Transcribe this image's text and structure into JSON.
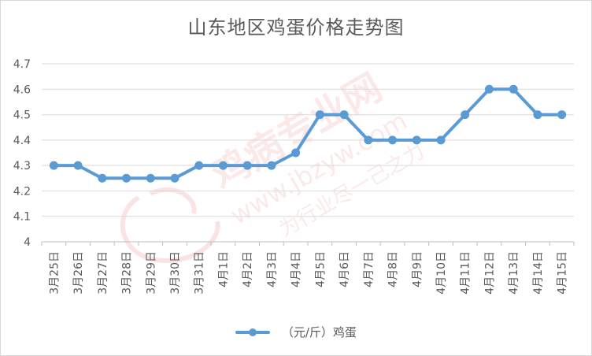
{
  "chart_data": {
    "type": "line",
    "title": "山东地区鸡蛋价格走势图",
    "xlabel": "",
    "ylabel": "",
    "ylim": [
      4,
      4.7
    ],
    "yticks": [
      "4.7",
      "4.6",
      "4.5",
      "4.4",
      "4.3",
      "4.2",
      "4.1",
      "4"
    ],
    "grid": true,
    "legend": "bottom",
    "categories": [
      "3月25日",
      "3月26日",
      "3月27日",
      "3月28日",
      "3月29日",
      "3月30日",
      "3月31日",
      "4月1日",
      "4月2日",
      "4月3日",
      "4月4日",
      "4月5日",
      "4月6日",
      "4月7日",
      "4月8日",
      "4月9日",
      "4月10日",
      "4月11日",
      "4月12日",
      "4月13日",
      "4月14日",
      "4月15日"
    ],
    "series": [
      {
        "name": "（元/斤）鸡蛋",
        "color": "#5b9bd5",
        "values": [
          4.3,
          4.3,
          4.25,
          4.25,
          4.25,
          4.25,
          4.3,
          4.3,
          4.3,
          4.3,
          4.35,
          4.5,
          4.5,
          4.4,
          4.4,
          4.4,
          4.4,
          4.5,
          4.6,
          4.6,
          4.5,
          4.5
        ]
      }
    ]
  },
  "watermark": {
    "brand": "鸡病专业网",
    "url": "www.jbzyw.com",
    "slogan": "为行业尽一己之力"
  }
}
